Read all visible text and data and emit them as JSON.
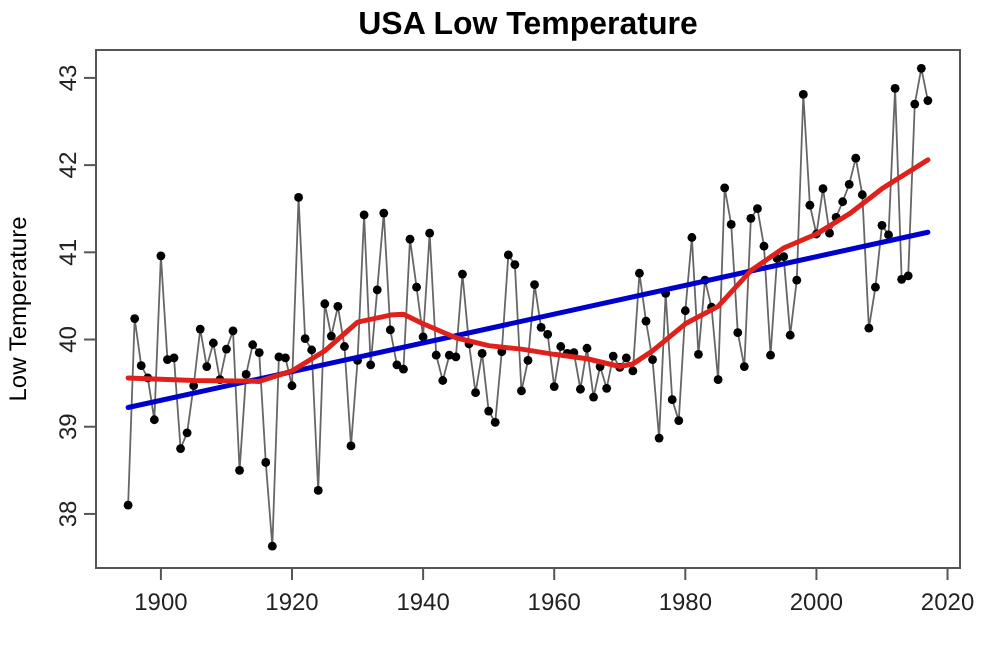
{
  "chart_data": {
    "type": "line",
    "title": "USA Low Temperature",
    "ylabel": "Low Temperature",
    "xlim": [
      1890.1,
      2021.9
    ],
    "ylim": [
      37.38,
      43.32
    ],
    "xticks": [
      1900,
      1920,
      1940,
      1960,
      1980,
      2000,
      2020
    ],
    "yticks": [
      38,
      39,
      40,
      41,
      42,
      43
    ],
    "grid": false,
    "series": [
      {
        "color": "#000000",
        "marker": "circle",
        "x": [
          1895,
          1896,
          1897,
          1898,
          1899,
          1900,
          1901,
          1902,
          1903,
          1904,
          1905,
          1906,
          1907,
          1908,
          1909,
          1910,
          1911,
          1912,
          1913,
          1914,
          1915,
          1916,
          1917,
          1918,
          1919,
          1920,
          1921,
          1922,
          1923,
          1924,
          1925,
          1926,
          1927,
          1928,
          1929,
          1930,
          1931,
          1932,
          1933,
          1934,
          1935,
          1936,
          1937,
          1938,
          1939,
          1940,
          1941,
          1942,
          1943,
          1944,
          1945,
          1946,
          1947,
          1948,
          1949,
          1950,
          1951,
          1952,
          1953,
          1954,
          1955,
          1956,
          1957,
          1958,
          1959,
          1960,
          1961,
          1962,
          1963,
          1964,
          1965,
          1966,
          1967,
          1968,
          1969,
          1970,
          1971,
          1972,
          1973,
          1974,
          1975,
          1976,
          1977,
          1978,
          1979,
          1980,
          1981,
          1982,
          1983,
          1984,
          1985,
          1986,
          1987,
          1988,
          1989,
          1990,
          1991,
          1992,
          1993,
          1994,
          1995,
          1996,
          1997,
          1998,
          1999,
          2000,
          2001,
          2002,
          2003,
          2004,
          2005,
          2006,
          2007,
          2008,
          2009,
          2010,
          2011,
          2012,
          2013,
          2014,
          2015,
          2016,
          2017
        ],
        "values": [
          38.1,
          40.24,
          39.7,
          39.56,
          39.08,
          40.96,
          39.77,
          39.79,
          38.75,
          38.93,
          39.47,
          40.12,
          39.69,
          39.96,
          39.54,
          39.89,
          40.1,
          38.5,
          39.6,
          39.94,
          39.85,
          38.59,
          37.63,
          39.8,
          39.79,
          39.47,
          41.63,
          40.01,
          39.88,
          38.27,
          40.41,
          40.04,
          40.38,
          39.92,
          38.78,
          39.76,
          41.43,
          39.71,
          40.57,
          41.45,
          40.11,
          39.71,
          39.66,
          41.15,
          40.6,
          40.03,
          41.22,
          39.82,
          39.53,
          39.82,
          39.8,
          40.75,
          39.95,
          39.39,
          39.84,
          39.18,
          39.05,
          39.86,
          40.97,
          40.86,
          39.41,
          39.76,
          40.63,
          40.14,
          40.06,
          39.46,
          39.92,
          39.84,
          39.85,
          39.43,
          39.9,
          39.34,
          39.69,
          39.44,
          39.81,
          39.68,
          39.79,
          39.64,
          40.76,
          40.21,
          39.77,
          38.87,
          40.53,
          39.31,
          39.07,
          40.33,
          41.17,
          39.83,
          40.68,
          40.37,
          39.54,
          41.74,
          41.32,
          40.08,
          39.69,
          41.39,
          41.5,
          41.07,
          39.82,
          40.93,
          40.95,
          40.05,
          40.68,
          42.81,
          41.54,
          41.21,
          41.73,
          41.22,
          41.4,
          41.58,
          41.78,
          42.08,
          41.66,
          40.13,
          40.6,
          41.31,
          41.2,
          42.88,
          40.69,
          40.73,
          42.7,
          43.11,
          42.74
        ]
      },
      {
        "color": "#0000cd",
        "x": [
          1895,
          2017
        ],
        "values": [
          39.22,
          41.23
        ]
      },
      {
        "color": "#e0201b",
        "x": [
          1895,
          1905,
          1915,
          1920,
          1925,
          1930,
          1935,
          1937,
          1940,
          1945,
          1950,
          1955,
          1960,
          1965,
          1970,
          1972,
          1975,
          1980,
          1985,
          1990,
          1995,
          2000,
          2005,
          2010,
          2017
        ],
        "values": [
          39.56,
          39.53,
          39.52,
          39.64,
          39.87,
          40.2,
          40.28,
          40.29,
          40.18,
          40.02,
          39.93,
          39.89,
          39.83,
          39.78,
          39.69,
          39.72,
          39.87,
          40.18,
          40.38,
          40.79,
          41.05,
          41.21,
          41.44,
          41.73,
          42.06
        ]
      }
    ]
  }
}
